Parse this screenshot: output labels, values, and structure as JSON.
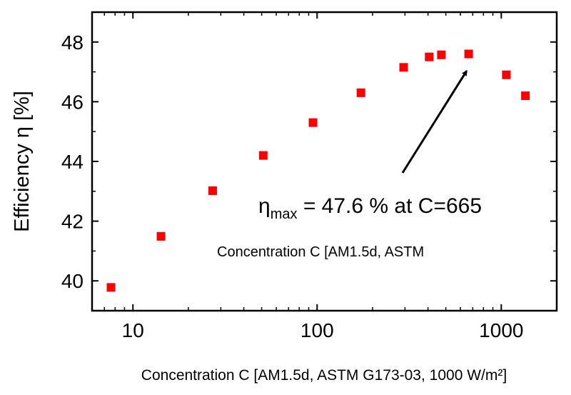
{
  "chart_data": {
    "type": "scatter",
    "xlabel": "Concentration C [AM1.5d, ASTM G173-03, 1000 W/m²]",
    "ylabel": "Efficiency η [%]",
    "xscale": "log",
    "xlim": [
      6,
      2000
    ],
    "ylim": [
      39,
      49
    ],
    "x_ticks": [
      10,
      100,
      1000
    ],
    "x_tick_labels": [
      "10",
      "100",
      "1000"
    ],
    "y_ticks": [
      40,
      42,
      44,
      46,
      48
    ],
    "y_tick_labels": [
      "40",
      "42",
      "44",
      "46",
      "48"
    ],
    "grid": false,
    "marker_color": "#ff0000",
    "marker": "square",
    "series": [
      {
        "x": [
          7.6,
          14.2,
          27.1,
          51,
          95,
          173,
          295,
          406,
          473,
          665,
          1065,
          1352
        ],
        "y": [
          39.78,
          41.49,
          43.02,
          44.2,
          45.3,
          46.3,
          47.15,
          47.5,
          47.57,
          47.6,
          46.9,
          46.2
        ]
      }
    ],
    "annotations": {
      "max_symbol": "η",
      "max_subscript": "max",
      "max_text": " = 47.6 % at C=665",
      "arrow_target": {
        "x": 665,
        "y": 47.6
      },
      "overlay_text": "Concentration C [AM1.5d, ASTM"
    }
  }
}
